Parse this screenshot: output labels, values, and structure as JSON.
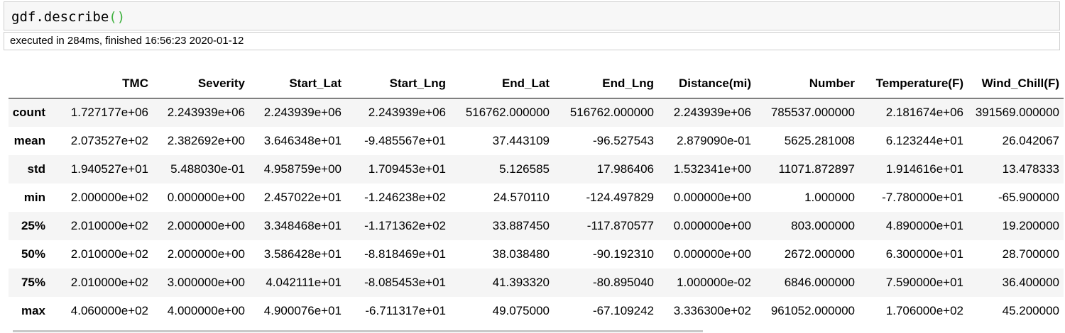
{
  "cell": {
    "code_prefix": "gdf.describe",
    "code_parens": "()",
    "exec_info": "executed in 284ms, finished 16:56:23 2020-01-12"
  },
  "table": {
    "columns": [
      "",
      "TMC",
      "Severity",
      "Start_Lat",
      "Start_Lng",
      "End_Lat",
      "End_Lng",
      "Distance(mi)",
      "Number",
      "Temperature(F)",
      "Wind_Chill(F)"
    ],
    "rows": [
      {
        "label": "count",
        "values": [
          "1.727177e+06",
          "2.243939e+06",
          "2.243939e+06",
          "2.243939e+06",
          "516762.000000",
          "516762.000000",
          "2.243939e+06",
          "785537.000000",
          "2.181674e+06",
          "391569.000000"
        ]
      },
      {
        "label": "mean",
        "values": [
          "2.073527e+02",
          "2.382692e+00",
          "3.646348e+01",
          "-9.485567e+01",
          "37.443109",
          "-96.527543",
          "2.879090e-01",
          "5625.281008",
          "6.123244e+01",
          "26.042067"
        ]
      },
      {
        "label": "std",
        "values": [
          "1.940527e+01",
          "5.488030e-01",
          "4.958759e+00",
          "1.709453e+01",
          "5.126585",
          "17.986406",
          "1.532341e+00",
          "11071.872897",
          "1.914616e+01",
          "13.478333"
        ]
      },
      {
        "label": "min",
        "values": [
          "2.000000e+02",
          "0.000000e+00",
          "2.457022e+01",
          "-1.246238e+02",
          "24.570110",
          "-124.497829",
          "0.000000e+00",
          "1.000000",
          "-7.780000e+01",
          "-65.900000"
        ]
      },
      {
        "label": "25%",
        "values": [
          "2.010000e+02",
          "2.000000e+00",
          "3.348468e+01",
          "-1.171362e+02",
          "33.887450",
          "-117.870577",
          "0.000000e+00",
          "803.000000",
          "4.890000e+01",
          "19.200000"
        ]
      },
      {
        "label": "50%",
        "values": [
          "2.010000e+02",
          "2.000000e+00",
          "3.586428e+01",
          "-8.818469e+01",
          "38.038480",
          "-90.192310",
          "0.000000e+00",
          "2672.000000",
          "6.300000e+01",
          "28.700000"
        ]
      },
      {
        "label": "75%",
        "values": [
          "2.010000e+02",
          "3.000000e+00",
          "4.042111e+01",
          "-8.085453e+01",
          "41.393320",
          "-80.895040",
          "1.000000e-02",
          "6846.000000",
          "7.590000e+01",
          "36.400000"
        ]
      },
      {
        "label": "max",
        "values": [
          "4.060000e+02",
          "4.000000e+00",
          "4.900076e+01",
          "-6.711317e+01",
          "49.075000",
          "-67.109242",
          "3.336300e+02",
          "961052.000000",
          "1.706000e+02",
          "45.200000"
        ]
      }
    ]
  }
}
